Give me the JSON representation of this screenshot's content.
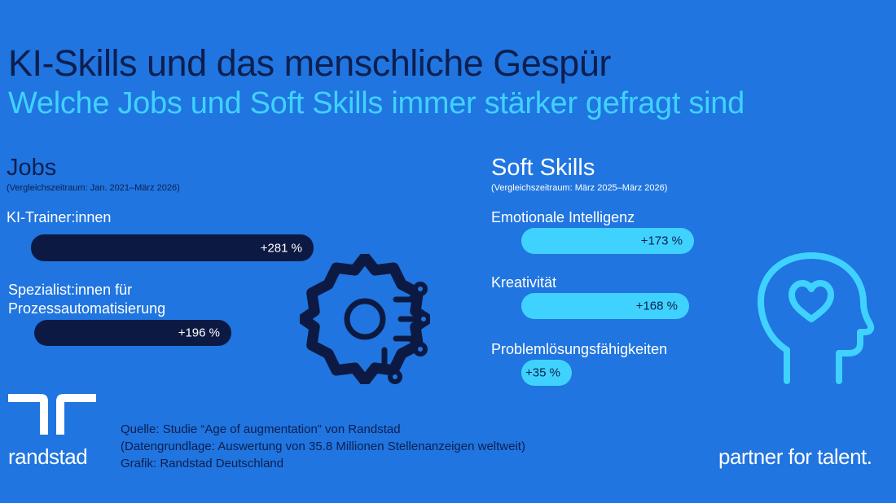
{
  "title": "KI-Skills und das menschliche Gespür",
  "subtitle": "Welche Jobs und Soft Skills immer stärker gefragt sind",
  "chart_data": [
    {
      "type": "bar",
      "orientation": "horizontal",
      "title": "Jobs",
      "subtitle": "(Vergleichszeitraum: Jan. 2021–März 2026)",
      "categories": [
        "KI-Trainer:innen",
        "Spezialist:innen für Prozessautomatisierung"
      ],
      "label_lines": [
        [
          "KI-Trainer:innen"
        ],
        [
          "Spezialist:innen für",
          "Prozessautomatisierung"
        ]
      ],
      "values": [
        281,
        196
      ],
      "value_labels": [
        "+281 %",
        "+196 %"
      ],
      "bar_color": "#0c1a43"
    },
    {
      "type": "bar",
      "orientation": "horizontal",
      "title": "Soft Skills",
      "subtitle": "(Vergleichszeitraum: März 2025–März 2026)",
      "categories": [
        "Emotionale Intelligenz",
        "Kreativität",
        "Problemlösungsfähigkeiten"
      ],
      "values": [
        173,
        168,
        35
      ],
      "value_labels": [
        "+173 %",
        "+168 %",
        "+35 %"
      ],
      "bar_color": "#3fd2ff"
    }
  ],
  "source": {
    "line1": "Quelle: Studie “Age of augmentation” von Randstad",
    "line2": "(Datengrundlage: Auswertung von 35.8 Millionen Stellenanzeigen weltweit)",
    "line3": "Grafik: Randstad Deutschland"
  },
  "brand": {
    "name": "randstad",
    "tagline": "partner for talent."
  },
  "icons": [
    "gear-circuit-icon",
    "head-heart-icon",
    "randstad-logo-icon"
  ],
  "colors": {
    "background": "#2075e0",
    "dark": "#0c1a43",
    "cyan": "#3fd2ff",
    "white": "#ffffff"
  }
}
